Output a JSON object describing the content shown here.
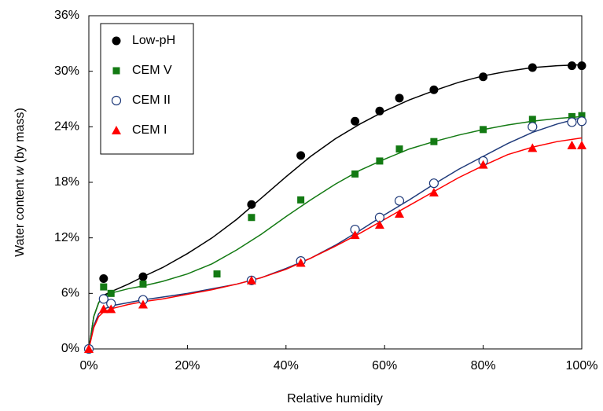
{
  "chart_data": {
    "type": "scatter",
    "xlabel": "Relative humidity",
    "ylabel": {
      "before": "Water content ",
      "var": "w",
      "after": " (by mass)"
    },
    "xlim": [
      0,
      100
    ],
    "ylim": [
      0,
      36
    ],
    "xticks": [
      {
        "value": 0,
        "label": "0%"
      },
      {
        "value": 20,
        "label": "20%"
      },
      {
        "value": 40,
        "label": "40%"
      },
      {
        "value": 60,
        "label": "60%"
      },
      {
        "value": 80,
        "label": "80%"
      },
      {
        "value": 100,
        "label": "100%"
      }
    ],
    "yticks": [
      {
        "value": 0,
        "label": "0%"
      },
      {
        "value": 6,
        "label": "6%"
      },
      {
        "value": 12,
        "label": "12%"
      },
      {
        "value": 18,
        "label": "18%"
      },
      {
        "value": 24,
        "label": "24%"
      },
      {
        "value": 30,
        "label": "30%"
      },
      {
        "value": 36,
        "label": "36%"
      }
    ],
    "grid": false,
    "legend": "upper-left",
    "fit_x": [
      0,
      1,
      2,
      3,
      5,
      8,
      11,
      15,
      20,
      25,
      30,
      35,
      40,
      45,
      50,
      55,
      60,
      65,
      70,
      75,
      80,
      85,
      90,
      95,
      100
    ],
    "series": [
      {
        "name": "Low-pH",
        "color": "#000000",
        "marker": "circle",
        "x": [
          0,
          3,
          11,
          33,
          43,
          54,
          59,
          63,
          70,
          80,
          90,
          98,
          100
        ],
        "values": [
          0,
          7.6,
          7.8,
          15.6,
          20.9,
          24.6,
          25.7,
          27.1,
          28.0,
          29.4,
          30.4,
          30.6,
          30.6
        ],
        "fit": [
          0,
          3.5,
          5.0,
          5.8,
          6.3,
          7.0,
          7.8,
          8.8,
          10.3,
          12.0,
          14.0,
          16.3,
          18.6,
          20.8,
          22.7,
          24.3,
          25.7,
          26.9,
          27.9,
          28.8,
          29.5,
          30.0,
          30.4,
          30.6,
          30.7
        ]
      },
      {
        "name": "CEM V",
        "color": "#137a13",
        "marker": "square",
        "x": [
          0,
          3,
          4.5,
          11,
          26,
          33,
          43,
          54,
          59,
          63,
          70,
          80,
          90,
          98,
          100
        ],
        "values": [
          0,
          6.7,
          6.0,
          7.0,
          8.1,
          14.2,
          16.1,
          18.9,
          20.3,
          21.6,
          22.4,
          23.7,
          24.8,
          25.1,
          25.2
        ],
        "fit": [
          0,
          3.5,
          5.0,
          5.7,
          6.1,
          6.5,
          6.8,
          7.3,
          8.1,
          9.2,
          10.7,
          12.4,
          14.3,
          16.1,
          17.8,
          19.3,
          20.5,
          21.6,
          22.4,
          23.1,
          23.7,
          24.2,
          24.6,
          24.9,
          25.1
        ]
      },
      {
        "name": "CEM II",
        "color": "#1f3a7a",
        "marker": "circle-open",
        "x": [
          0,
          3,
          4.5,
          11,
          33,
          43,
          54,
          59,
          63,
          70,
          80,
          90,
          98,
          100
        ],
        "values": [
          0,
          5.4,
          4.9,
          5.3,
          7.4,
          9.5,
          12.9,
          14.2,
          16.0,
          17.9,
          20.3,
          24.0,
          24.5,
          24.6
        ],
        "fit": [
          0,
          2.5,
          3.8,
          4.3,
          4.7,
          5.0,
          5.3,
          5.6,
          6.0,
          6.5,
          7.0,
          7.7,
          8.7,
          9.8,
          11.2,
          12.8,
          14.5,
          16.1,
          17.8,
          19.4,
          20.8,
          22.2,
          23.4,
          24.3,
          25.0
        ]
      },
      {
        "name": "CEM I",
        "color": "#ff0000",
        "marker": "triangle",
        "x": [
          0,
          3,
          4.5,
          11,
          33,
          43,
          54,
          59,
          63,
          70,
          80,
          90,
          98,
          100
        ],
        "values": [
          0,
          4.3,
          4.3,
          4.8,
          7.4,
          9.3,
          12.3,
          13.4,
          14.6,
          16.9,
          19.9,
          21.7,
          22.0,
          22.0
        ],
        "fit": [
          0,
          2.3,
          3.5,
          4.0,
          4.4,
          4.8,
          5.1,
          5.4,
          5.9,
          6.4,
          7.0,
          7.7,
          8.6,
          9.8,
          11.1,
          12.5,
          14.0,
          15.5,
          17.0,
          18.5,
          19.8,
          21.0,
          21.8,
          22.4,
          22.8
        ]
      }
    ]
  }
}
